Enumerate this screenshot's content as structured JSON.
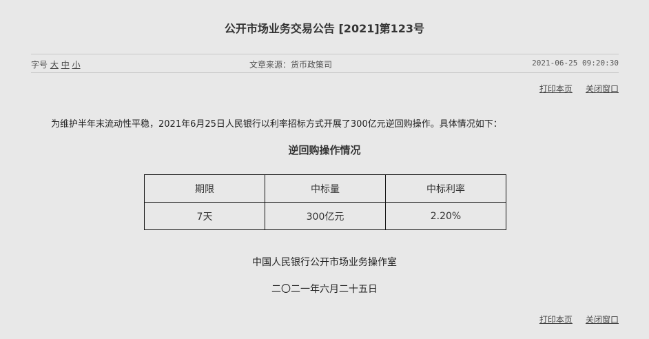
{
  "title": "公开市场业务交易公告 [2021]第123号",
  "meta": {
    "font_label": "字号",
    "font_large": "大",
    "font_medium": "中",
    "font_small": "小",
    "source": "文章来源：货币政策司",
    "datetime": "2021-06-25 09:20:30"
  },
  "actions": {
    "print": "打印本页",
    "close": "关闭窗口"
  },
  "intro": "为维护半年末流动性平稳，2021年6月25日人民银行以利率招标方式开展了300亿元逆回购操作。具体情况如下：",
  "subtitle": "逆回购操作情况",
  "table": {
    "headers": [
      "期限",
      "中标量",
      "中标利率"
    ],
    "rows": [
      [
        "7天",
        "300亿元",
        "2.20%"
      ]
    ]
  },
  "signature": "中国人民银行公开市场业务操作室",
  "date": "二〇二一年六月二十五日"
}
